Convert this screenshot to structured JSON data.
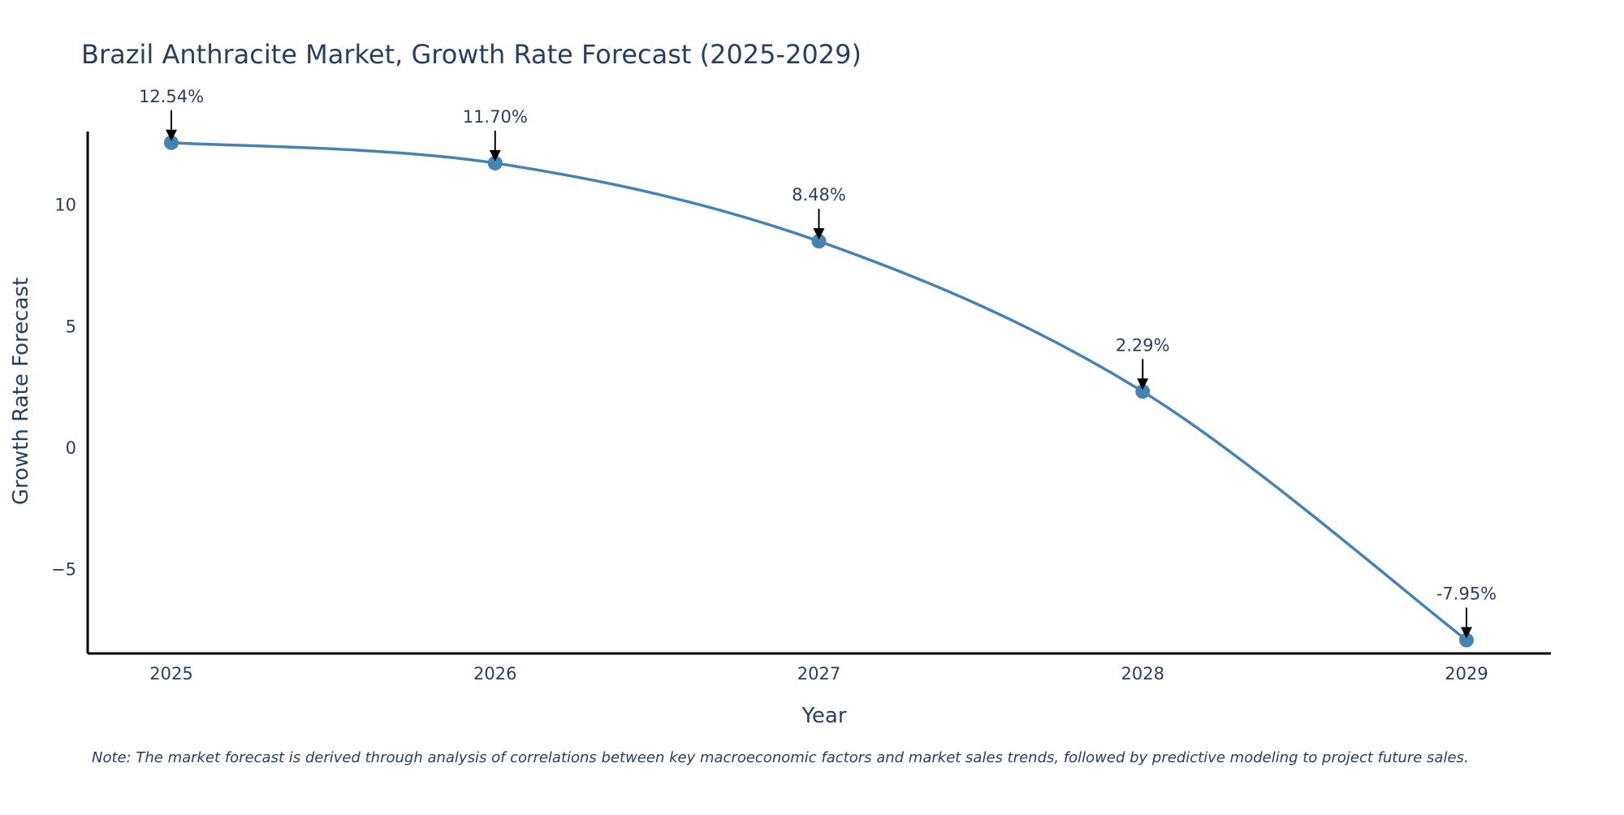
{
  "chart_data": {
    "type": "line",
    "title": "Brazil Anthracite Market, Growth Rate Forecast (2025-2029)",
    "xlabel": "Year",
    "ylabel": "Growth Rate Forecast",
    "categories": [
      "2025",
      "2026",
      "2027",
      "2028",
      "2029"
    ],
    "values": [
      12.54,
      11.7,
      8.48,
      2.29,
      -7.95
    ],
    "data_labels": [
      "12.54%",
      "11.70%",
      "8.48%",
      "2.29%",
      "-7.95%"
    ],
    "ylim": [
      -8.5,
      13
    ],
    "yticks": [
      -5,
      0,
      5,
      10
    ],
    "ytick_labels": [
      "−5",
      "0",
      "5",
      "10"
    ],
    "grid": false,
    "line_shape": "spline",
    "note": "Note: The market forecast is derived through analysis of correlations between key macroeconomic factors and market sales trends, followed by predictive modeling to project future sales.",
    "colors": {
      "line": "#4682b4",
      "marker": "#4682b4",
      "axis": "#000000",
      "text": "#2a3f5f",
      "arrow": "#000000"
    }
  }
}
